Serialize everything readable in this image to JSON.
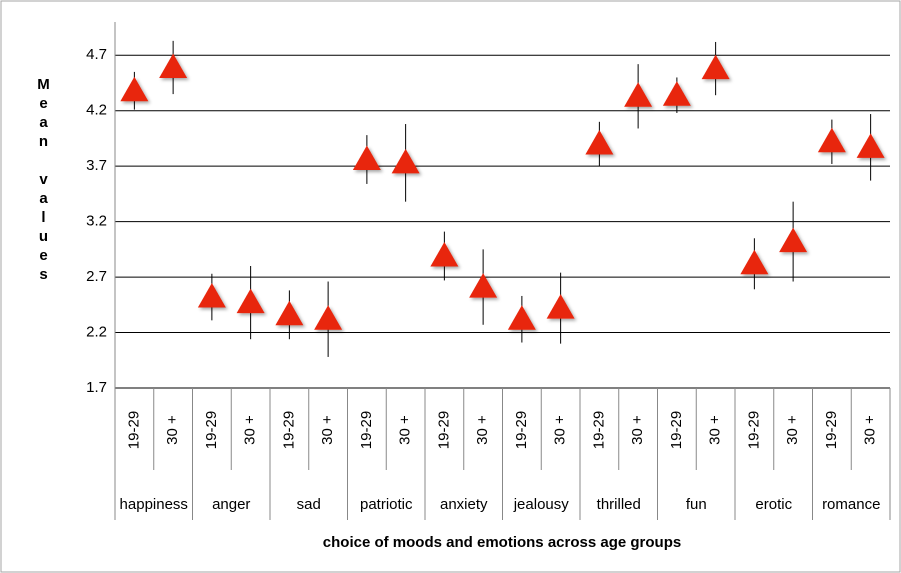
{
  "chart_data": {
    "type": "errorbar",
    "x_label": "choice of moods and emotions across age groups",
    "y_label": "Mean values",
    "categories": [
      "19-29",
      "30 +",
      "19-29",
      "30 +",
      "19-29",
      "30 +",
      "19-29",
      "30 +",
      "19-29",
      "30 +",
      "19-29",
      "30 +",
      "19-29",
      "30 +",
      "19-29",
      "30 +",
      "19-29",
      "30 +",
      "19-29",
      "30 +"
    ],
    "groups": [
      "happiness",
      "anger",
      "sad",
      "patriotic",
      "anxiety",
      "jealousy",
      "thrilled",
      "fun",
      "erotic",
      "romance"
    ],
    "values": [
      4.38,
      4.59,
      2.52,
      2.47,
      2.36,
      2.32,
      3.76,
      3.73,
      2.89,
      2.61,
      2.32,
      2.42,
      3.9,
      4.33,
      4.34,
      4.58,
      2.82,
      3.02,
      3.92,
      3.87
    ],
    "errors": [
      0.17,
      0.24,
      0.21,
      0.33,
      0.22,
      0.34,
      0.22,
      0.35,
      0.22,
      0.34,
      0.21,
      0.32,
      0.2,
      0.29,
      0.16,
      0.24,
      0.23,
      0.36,
      0.2,
      0.3
    ],
    "color": "#e8260c",
    "ylim": [
      1.7,
      5.0
    ],
    "yticks": [
      1.7,
      2.2,
      2.7,
      3.2,
      3.7,
      4.2,
      4.7
    ],
    "grid": true
  }
}
